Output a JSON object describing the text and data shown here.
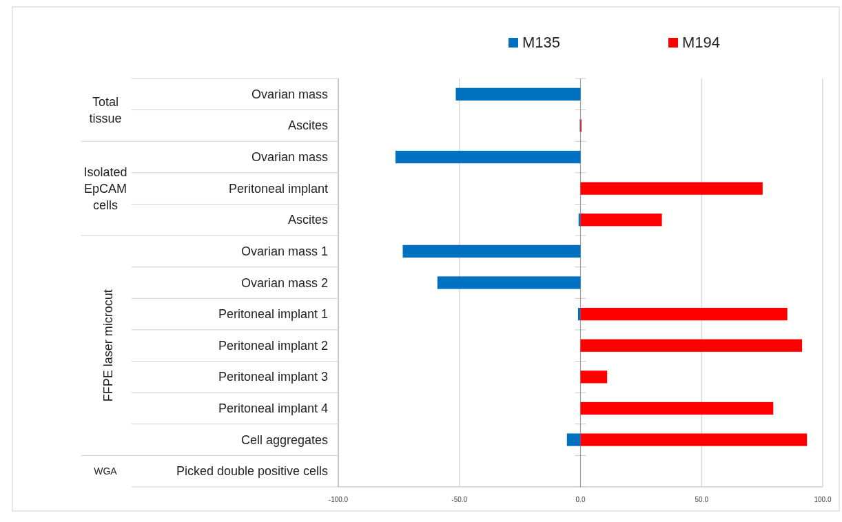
{
  "chart_data": {
    "type": "bar",
    "orientation": "horizontal",
    "categories": [
      "Ovarian mass",
      "Ascites",
      "Ovarian mass",
      "Peritoneal implant",
      "Ascites",
      "Ovarian mass 1",
      "Ovarian mass 2",
      "Peritoneal implant 1",
      "Peritoneal implant 2",
      "Peritoneal implant 3",
      "Peritoneal implant 4",
      "Cell aggregates",
      "Picked double positive cells"
    ],
    "series": [
      {
        "name": "M135",
        "color": "#0070c0",
        "values": [
          -51.5,
          -0.3,
          -76.4,
          null,
          -0.8,
          -73.4,
          -59.1,
          -1.0,
          null,
          null,
          null,
          -5.6,
          null
        ]
      },
      {
        "name": "M194",
        "color": "#ff0000",
        "values": [
          null,
          0.4,
          null,
          75.2,
          33.6,
          null,
          null,
          85.4,
          91.5,
          11.0,
          79.6,
          93.5,
          null
        ]
      }
    ],
    "xlim": [
      -100,
      100
    ],
    "xticks": [
      {
        "value": -100,
        "label": "-100.0"
      },
      {
        "value": -50,
        "label": "-50.0"
      },
      {
        "value": 0,
        "label": "0.0"
      },
      {
        "value": 50,
        "label": "50.0"
      },
      {
        "value": 100,
        "label": "100.0"
      }
    ],
    "grid": "x",
    "legend": "top",
    "annotations": [
      "Total tissue",
      "Isolated EpCAM cells",
      "FFPE laser microcut",
      "WGA"
    ]
  }
}
